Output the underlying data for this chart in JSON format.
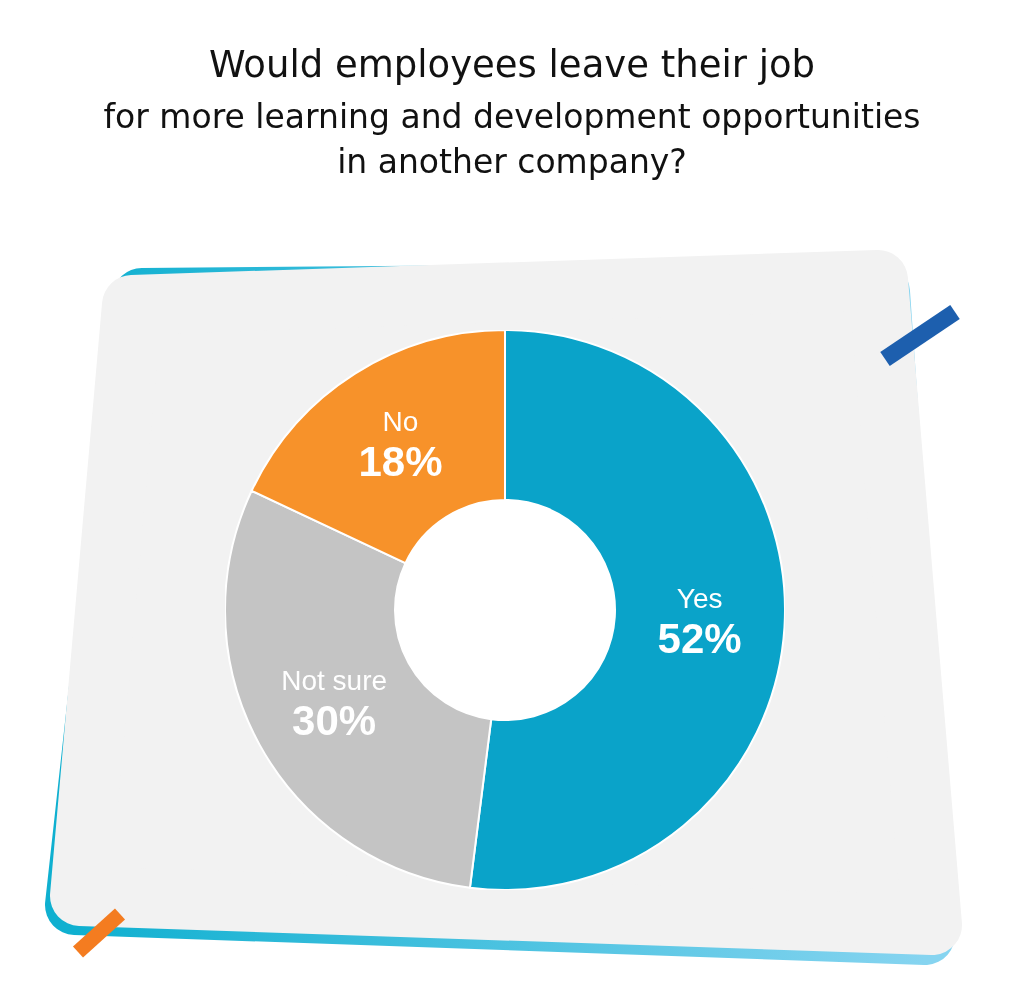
{
  "chart_data": {
    "type": "donut",
    "title": "Would employees leave their job",
    "subtitle": "for more learning and development opportunities in another company?",
    "categories": [
      "Yes",
      "Not sure",
      "No"
    ],
    "values": [
      52,
      30,
      18
    ],
    "value_labels": [
      "52%",
      "30%",
      "18%"
    ],
    "colors": [
      "#0aa3c9",
      "#c4c4c4",
      "#f7922a"
    ]
  }
}
